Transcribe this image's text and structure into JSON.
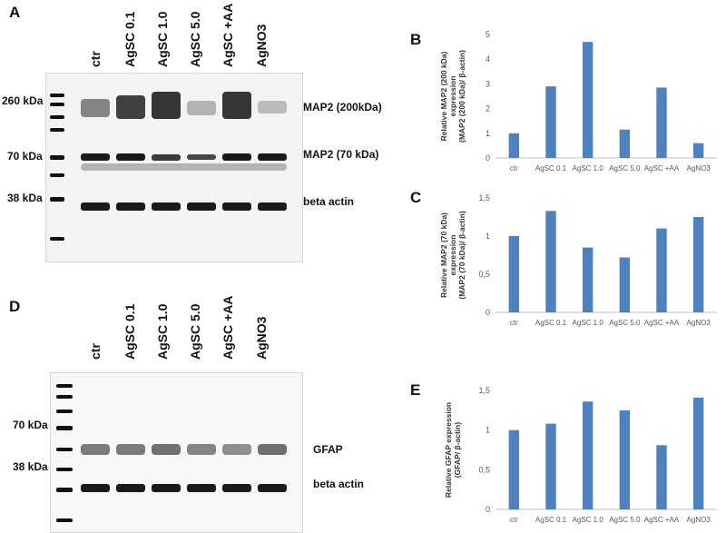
{
  "panels": {
    "A": "A",
    "B": "B",
    "C": "C",
    "D": "D",
    "E": "E"
  },
  "blot_A": {
    "lanes": [
      "ctr",
      "AgSC 0.1",
      "AgSC 1.0",
      "AgSC 5.0",
      "AgSC +AA",
      "AgNO3"
    ],
    "markers": [
      "260 kDa",
      "70 kDa",
      "38 kDa"
    ],
    "bands": [
      "MAP2 (200kDa)",
      "MAP2 (70 kDa)",
      "beta actin"
    ]
  },
  "blot_D": {
    "lanes": [
      "ctr",
      "AgSC 0.1",
      "AgSC 1.0",
      "AgSC 5.0",
      "AgSC +AA",
      "AgNO3"
    ],
    "markers": [
      "70 kDa",
      "38 kDa"
    ],
    "bands": [
      "GFAP",
      "beta actin"
    ]
  },
  "colors": {
    "bar": "#4f81bd",
    "axis": "#bfbfbf",
    "text": "#595959"
  },
  "chart_data": [
    {
      "id": "B",
      "type": "bar",
      "categories": [
        "ctr",
        "AgSC 0.1",
        "AgSC 1.0",
        "AgSC 5.0",
        "AgSC +AA",
        "AgNO3"
      ],
      "values": [
        1.0,
        2.9,
        4.7,
        1.15,
        2.85,
        0.6
      ],
      "ylabel_lines": [
        "Relative MAP2 (200 kDa)",
        "expression",
        "(MAP2 (200 kDa)/ β-actin)"
      ],
      "ylim": [
        0,
        5
      ],
      "yticks": [
        0,
        1,
        2,
        3,
        4,
        5
      ],
      "ytick_labels": [
        "0",
        "1",
        "2",
        "3",
        "4",
        "5"
      ],
      "grid": false
    },
    {
      "id": "C",
      "type": "bar",
      "categories": [
        "ctr",
        "AgSC 0.1",
        "AgSC 1.0",
        "AgSC 5.0",
        "AgSC +AA",
        "AgNO3"
      ],
      "values": [
        1.0,
        1.33,
        0.85,
        0.72,
        1.1,
        1.25
      ],
      "ylabel_lines": [
        "Relative MAP2 (70 kDa)",
        "expression",
        "(MAP2 (70 kDa)/ β-actin)"
      ],
      "ylim": [
        0,
        1.5
      ],
      "yticks": [
        0,
        0.5,
        1,
        1.5
      ],
      "ytick_labels": [
        "0",
        "0,5",
        "1",
        "1,5"
      ],
      "grid": false
    },
    {
      "id": "E",
      "type": "bar",
      "categories": [
        "ctr",
        "AgSC 0.1",
        "AgSC 1.0",
        "AgSC 5.0",
        "AgSC +AA",
        "AgNO3"
      ],
      "values": [
        1.0,
        1.08,
        1.36,
        1.25,
        0.81,
        1.41
      ],
      "ylabel_lines": [
        "Relative GFAP expression",
        "(GFAP/ β-actin)"
      ],
      "ylim": [
        0,
        1.5
      ],
      "yticks": [
        0,
        0.5,
        1,
        1.5
      ],
      "ytick_labels": [
        "0",
        "0,5",
        "1",
        "1,5"
      ],
      "grid": false
    }
  ]
}
